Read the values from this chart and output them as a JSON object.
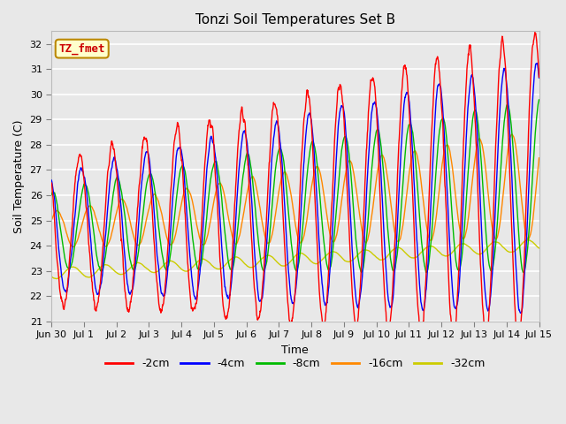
{
  "title": "Tonzi Soil Temperatures Set B",
  "xlabel": "Time",
  "ylabel": "Soil Temperature (C)",
  "annotation": "TZ_fmet",
  "annotation_color": "#cc0000",
  "annotation_bg": "#ffffcc",
  "annotation_border": "#bb8800",
  "ylim": [
    21.0,
    32.5
  ],
  "ytick_min": 21.0,
  "ytick_max": 32.0,
  "ytick_step": 1.0,
  "bg_color": "#e8e8e8",
  "grid_color": "#ffffff",
  "line_colors": [
    "#ff0000",
    "#0000ff",
    "#00bb00",
    "#ff8800",
    "#cccc00"
  ],
  "legend_labels": [
    "-2cm",
    "-4cm",
    "-8cm",
    "-16cm",
    "-32cm"
  ],
  "xtick_labels": [
    "Jun 30",
    "Jul 1",
    "Jul 2",
    "Jul 3",
    "Jul 4",
    "Jul 5",
    "Jul 6",
    "Jul 7",
    "Jul 8",
    "Jul 9",
    "Jul 10",
    "Jul 11",
    "Jul 12",
    "Jul 13",
    "Jul 14",
    "Jul 15"
  ],
  "xtick_positions": [
    0,
    1,
    2,
    3,
    4,
    5,
    6,
    7,
    8,
    9,
    10,
    11,
    12,
    13,
    14,
    15
  ],
  "figsize": [
    6.4,
    4.8
  ],
  "dpi": 100
}
